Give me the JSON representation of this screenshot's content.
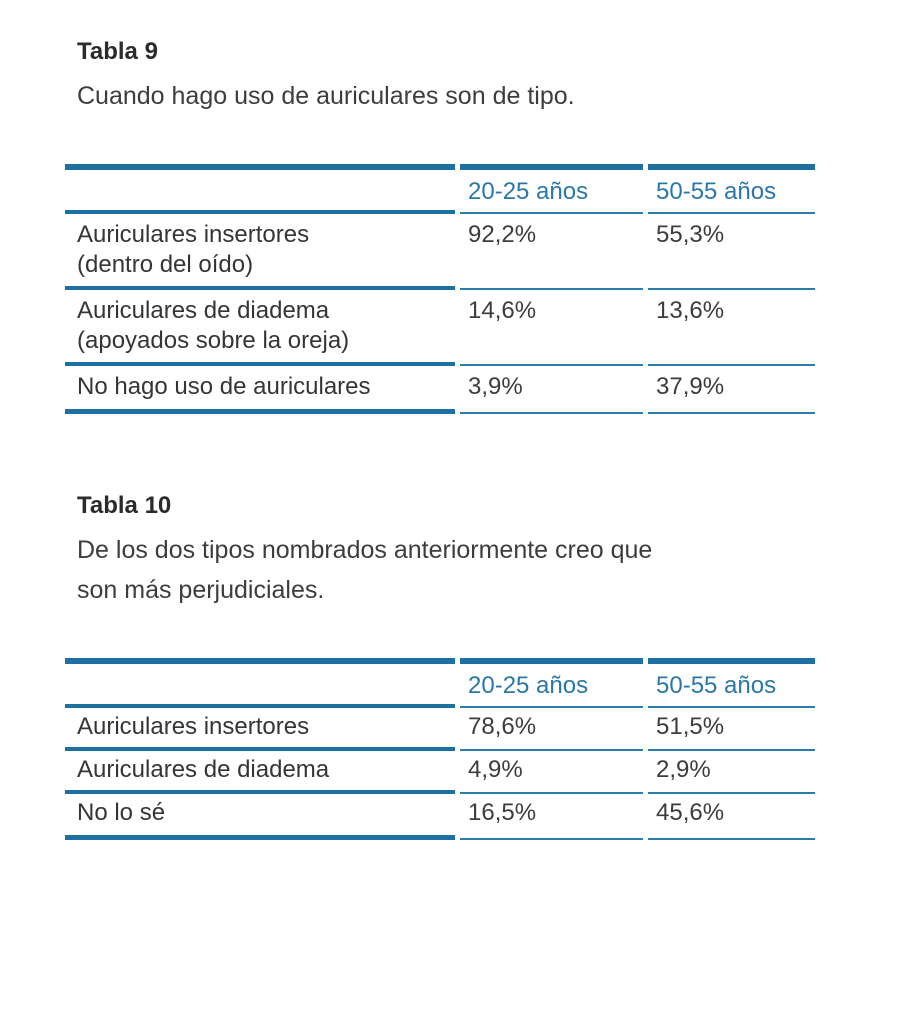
{
  "accent": {
    "rule_color": "#1e6fa2",
    "header_text_color": "#2a77a9"
  },
  "tables": [
    {
      "title": "Tabla 9",
      "caption_lines": [
        "Cuando hago uso de auriculares son de tipo."
      ],
      "columns": [
        "",
        "20-25 años",
        "50-55 años"
      ],
      "rows": [
        {
          "label": "Auriculares insertores",
          "sublabel": "(dentro del oído)",
          "values": [
            "92,2%",
            "55,3%"
          ]
        },
        {
          "label": "Auriculares de diadema",
          "sublabel": "(apoyados sobre la oreja)",
          "values": [
            "14,6%",
            "13,6%"
          ]
        },
        {
          "label": "No hago uso de auriculares",
          "sublabel": "",
          "values": [
            "3,9%",
            "37,9%"
          ]
        }
      ]
    },
    {
      "title": "Tabla 10",
      "caption_lines": [
        "De los dos tipos nombrados anteriormente creo que",
        "son más perjudiciales."
      ],
      "columns": [
        "",
        "20-25 años",
        "50-55 años"
      ],
      "rows": [
        {
          "label": "Auriculares insertores",
          "sublabel": "",
          "values": [
            "78,6%",
            "51,5%"
          ]
        },
        {
          "label": "Auriculares de diadema",
          "sublabel": "",
          "values": [
            "4,9%",
            "2,9%"
          ]
        },
        {
          "label": "No lo sé",
          "sublabel": "",
          "values": [
            "16,5%",
            "45,6%"
          ]
        }
      ]
    }
  ]
}
